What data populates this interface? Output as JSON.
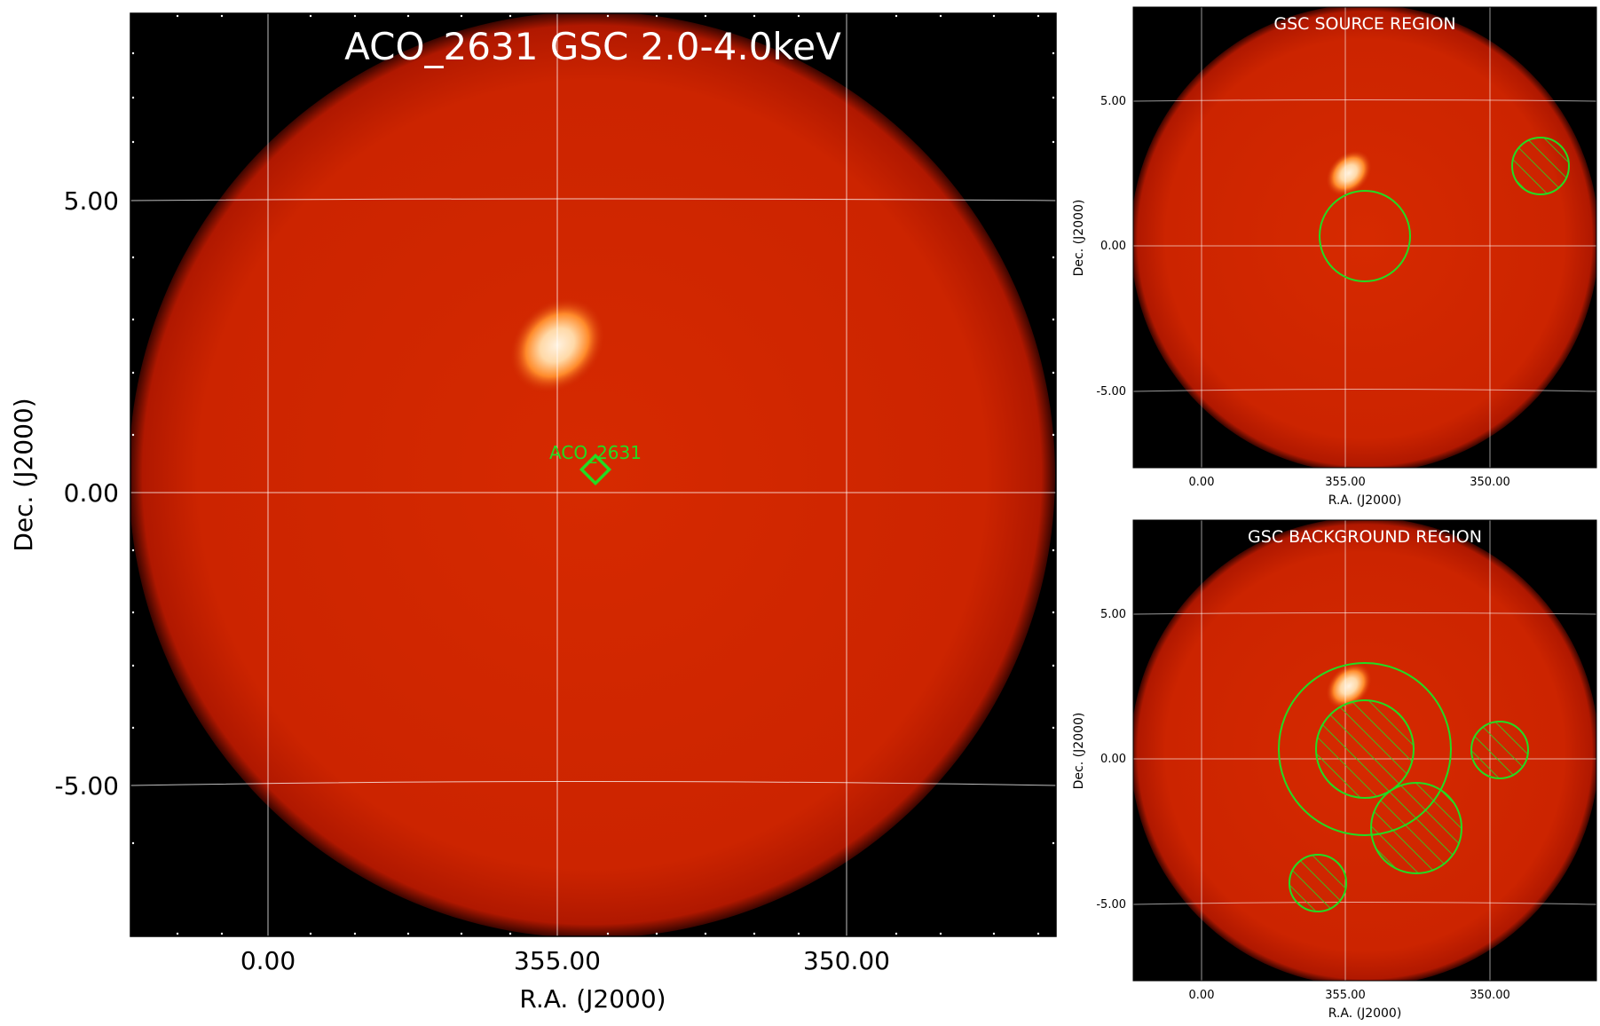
{
  "main": {
    "title": "ACO_2631 GSC 2.0-4.0keV",
    "xlabel": "R.A. (J2000)",
    "ylabel": "Dec. (J2000)",
    "x_ticks": [
      "0.00",
      "355.00",
      "350.00"
    ],
    "y_ticks": [
      "5.00",
      "0.00",
      "-5.00"
    ],
    "marker_label": "ACO_2631"
  },
  "source_panel": {
    "title": "GSC SOURCE REGION",
    "xlabel": "R.A. (J2000)",
    "ylabel": "Dec. (J2000)",
    "x_ticks": [
      "0.00",
      "355.00",
      "350.00"
    ],
    "y_ticks": [
      "5.00",
      "0.00",
      "-5.00"
    ]
  },
  "background_panel": {
    "title": "GSC BACKGROUND REGION",
    "xlabel": "R.A. (J2000)",
    "ylabel": "Dec. (J2000)",
    "x_ticks": [
      "0.00",
      "355.00",
      "350.00"
    ],
    "y_ticks": [
      "5.00",
      "0.00",
      "-5.00"
    ]
  },
  "colors": {
    "background": "#000000",
    "disk": "#cc2200",
    "region": "#22dd22",
    "grid": "#ffffff"
  }
}
